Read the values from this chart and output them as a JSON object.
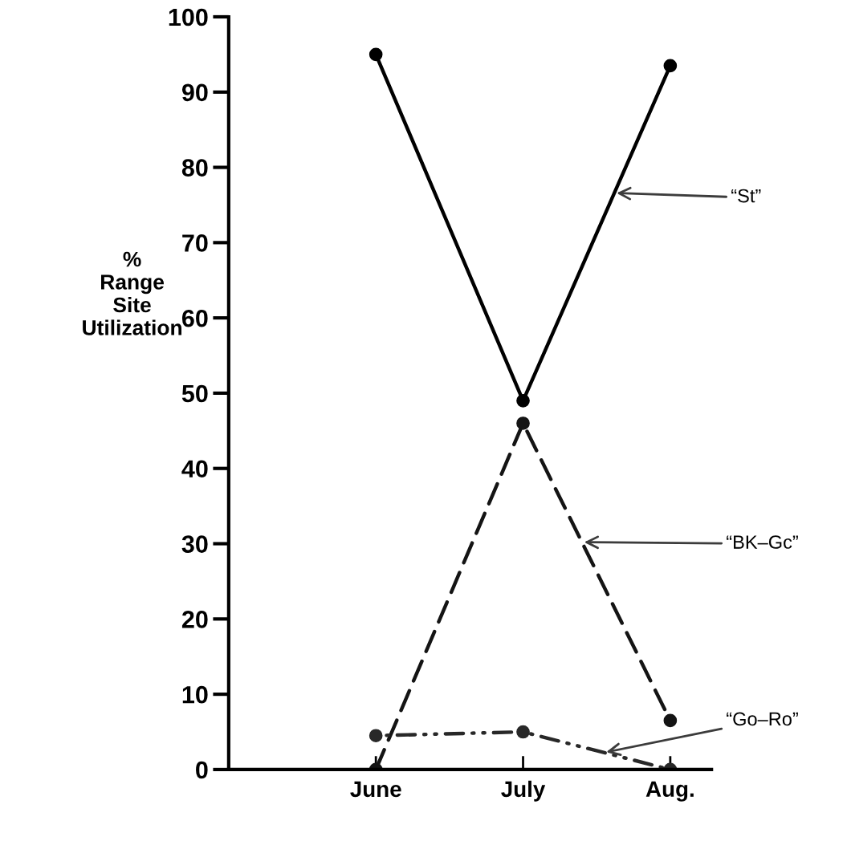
{
  "chart_data": {
    "type": "line",
    "ylabel": "%\nRange\nSite\nUtilization",
    "categories": [
      "June",
      "July",
      "Aug."
    ],
    "series": [
      {
        "name": "“St”",
        "color": "#000000",
        "values": [
          95,
          49,
          93.5
        ],
        "line_style": "solid"
      },
      {
        "name": "“BK–Gc”",
        "color": "#141414",
        "values": [
          0,
          46,
          6.5
        ],
        "line_style": "dashed"
      },
      {
        "name": "“Go–Ro”",
        "color": "#282828",
        "values": [
          4.5,
          5,
          0
        ],
        "line_style": "dotted"
      }
    ],
    "marker": "circle",
    "ylim": [
      0,
      100
    ],
    "yticks": [
      0,
      10,
      20,
      30,
      40,
      50,
      60,
      70,
      80,
      90,
      100
    ],
    "grid": false,
    "legend": false
  }
}
